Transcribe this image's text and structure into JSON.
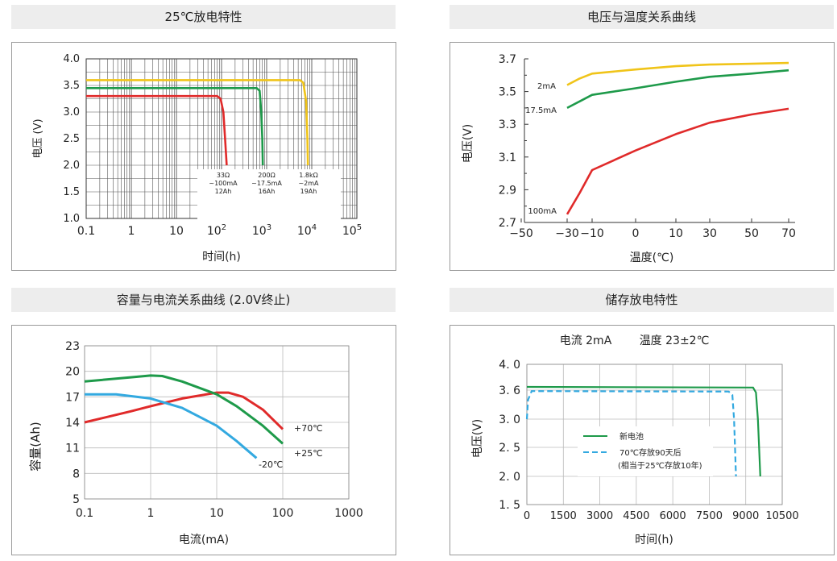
{
  "panels": {
    "p1": {
      "title": "25℃放电特性",
      "xlabel": "时间(h)",
      "ylabel": "电压 (V)"
    },
    "p2": {
      "title": "电压与温度关系曲线",
      "xlabel": "温度(℃)",
      "ylabel": "电压(V)"
    },
    "p3": {
      "title": "容量与电流关系曲线 (2.0V终止)",
      "xlabel": "电流(mA)",
      "ylabel": "容量(Ah)"
    },
    "p4": {
      "title": "储存放电特性",
      "subtitle_current": "电流 2mA",
      "subtitle_temp": "温度 23±2℃",
      "xlabel": "时间(h)",
      "ylabel": "电压(V)"
    }
  },
  "chart_data": [
    {
      "type": "line",
      "title": "25℃放电特性",
      "xlabel": "时间(h)",
      "ylabel": "电压 (V)",
      "x_scale": "log",
      "xlim": [
        0.1,
        100000
      ],
      "ylim": [
        1.0,
        4.0
      ],
      "x_ticks": [
        {
          "v": 0.1,
          "base": "0.1",
          "exp": ""
        },
        {
          "v": 1,
          "base": "1",
          "exp": ""
        },
        {
          "v": 10,
          "base": "10",
          "exp": ""
        },
        {
          "v": 100,
          "base": "10",
          "exp": "2"
        },
        {
          "v": 1000,
          "base": "10",
          "exp": "3"
        },
        {
          "v": 10000,
          "base": "10",
          "exp": "4"
        },
        {
          "v": 100000,
          "base": "10",
          "exp": "5"
        }
      ],
      "y_ticks": [
        "1.0",
        "1.5",
        "2.0",
        "2.5",
        "3.0",
        "3.5",
        "4.0"
      ],
      "grid": true,
      "series": [
        {
          "color": "#e02a2a",
          "points": [
            [
              0.1,
              3.3
            ],
            [
              80,
              3.3
            ],
            [
              95,
              3.25
            ],
            [
              110,
              3.0
            ],
            [
              120,
              2.5
            ],
            [
              130,
              2.0
            ]
          ]
        },
        {
          "color": "#1e9a4a",
          "points": [
            [
              0.1,
              3.45
            ],
            [
              600,
              3.45
            ],
            [
              700,
              3.4
            ],
            [
              760,
              3.0
            ],
            [
              800,
              2.5
            ],
            [
              820,
              2.0
            ]
          ]
        },
        {
          "color": "#f0c419",
          "points": [
            [
              0.1,
              3.6
            ],
            [
              5500,
              3.6
            ],
            [
              6500,
              3.55
            ],
            [
              7500,
              3.2
            ],
            [
              8000,
              2.5
            ],
            [
              8200,
              2.0
            ]
          ]
        }
      ],
      "annotations": [
        {
          "lines": [
            "33Ω",
            "~100mA",
            "12Ah"
          ]
        },
        {
          "lines": [
            "200Ω",
            "~17.5mA",
            "16Ah"
          ]
        },
        {
          "lines": [
            "1.8kΩ",
            "~2mA",
            "19Ah"
          ]
        }
      ]
    },
    {
      "type": "line",
      "title": "电压与温度关系曲线",
      "xlabel": "温度(℃)",
      "ylabel": "电压(V)",
      "x_ticks": [
        "-50",
        "-30",
        "-10",
        "0",
        "10",
        "30",
        "50",
        "70"
      ],
      "y_ticks": [
        "2.7",
        "2.9",
        "3.1",
        "3.3",
        "3.5",
        "3.7"
      ],
      "ylim": [
        2.7,
        3.7
      ],
      "series": [
        {
          "name": "2mA",
          "color": "#f0c419",
          "points": [
            [
              -30,
              3.54
            ],
            [
              -20,
              3.58
            ],
            [
              -10,
              3.61
            ],
            [
              0,
              3.635
            ],
            [
              10,
              3.655
            ],
            [
              30,
              3.665
            ],
            [
              50,
              3.67
            ],
            [
              70,
              3.675
            ]
          ]
        },
        {
          "name": "17.5mA",
          "color": "#1e9a4a",
          "points": [
            [
              -30,
              3.4
            ],
            [
              -20,
              3.44
            ],
            [
              -10,
              3.48
            ],
            [
              0,
              3.52
            ],
            [
              10,
              3.56
            ],
            [
              30,
              3.59
            ],
            [
              50,
              3.61
            ],
            [
              70,
              3.63
            ]
          ]
        },
        {
          "name": "100mA",
          "color": "#e02a2a",
          "points": [
            [
              -30,
              2.75
            ],
            [
              -20,
              2.88
            ],
            [
              -10,
              3.02
            ],
            [
              0,
              3.14
            ],
            [
              10,
              3.24
            ],
            [
              30,
              3.31
            ],
            [
              50,
              3.36
            ],
            [
              70,
              3.395
            ]
          ]
        }
      ]
    },
    {
      "type": "line",
      "title": "容量与电流关系曲线 (2.0V终止)",
      "xlabel": "电流(mA)",
      "ylabel": "容量(Ah)",
      "x_scale": "log",
      "x_ticks": [
        "0.1",
        "1",
        "10",
        "100",
        "1000"
      ],
      "y_ticks": [
        "5",
        "8",
        "11",
        "14",
        "17",
        "20",
        "23"
      ],
      "ylim": [
        5,
        23
      ],
      "series": [
        {
          "name": "+70℃",
          "color": "#e02a2a",
          "points": [
            [
              0.1,
              14.0
            ],
            [
              0.5,
              15.3
            ],
            [
              1,
              15.9
            ],
            [
              3,
              16.8
            ],
            [
              10,
              17.5
            ],
            [
              15,
              17.5
            ],
            [
              25,
              17.0
            ],
            [
              50,
              15.5
            ],
            [
              100,
              13.2
            ]
          ]
        },
        {
          "name": "+25℃",
          "color": "#1e9a4a",
          "points": [
            [
              0.1,
              18.8
            ],
            [
              0.5,
              19.3
            ],
            [
              1,
              19.5
            ],
            [
              1.5,
              19.45
            ],
            [
              3,
              18.8
            ],
            [
              10,
              17.3
            ],
            [
              20,
              15.9
            ],
            [
              50,
              13.6
            ],
            [
              100,
              11.5
            ]
          ]
        },
        {
          "name": "-20℃",
          "color": "#33a9e0",
          "points": [
            [
              0.1,
              17.3
            ],
            [
              0.3,
              17.3
            ],
            [
              1,
              16.8
            ],
            [
              3,
              15.7
            ],
            [
              10,
              13.6
            ],
            [
              20,
              11.8
            ],
            [
              40,
              9.8
            ]
          ]
        }
      ]
    },
    {
      "type": "line",
      "title": "储存放电特性",
      "xlabel": "时间(h)",
      "ylabel": "电压(V)",
      "x_ticks": [
        "0",
        "1500",
        "3000",
        "4500",
        "6000",
        "7500",
        "9000",
        "10500"
      ],
      "y_ticks": [
        "1.5",
        "2.0",
        "2.5",
        "3.0",
        "3.6",
        "4.0"
      ],
      "ylim": [
        1.5,
        4.0
      ],
      "xlim": [
        0,
        10500
      ],
      "series": [
        {
          "name": "新电池",
          "color": "#1e9a4a",
          "dash": false,
          "points": [
            [
              0,
              3.65
            ],
            [
              9300,
              3.64
            ],
            [
              9420,
              3.55
            ],
            [
              9500,
              3.0
            ],
            [
              9550,
              2.5
            ],
            [
              9600,
              2.0
            ]
          ]
        },
        {
          "name": "70℃存放90天后",
          "color": "#33a9e0",
          "dash": true,
          "points": [
            [
              0,
              3.0
            ],
            [
              50,
              3.4
            ],
            [
              200,
              3.58
            ],
            [
              8300,
              3.57
            ],
            [
              8450,
              3.5
            ],
            [
              8520,
              3.0
            ],
            [
              8560,
              2.5
            ],
            [
              8600,
              2.0
            ]
          ]
        }
      ],
      "legend_note": "(相当于25℃存放10年)"
    }
  ]
}
